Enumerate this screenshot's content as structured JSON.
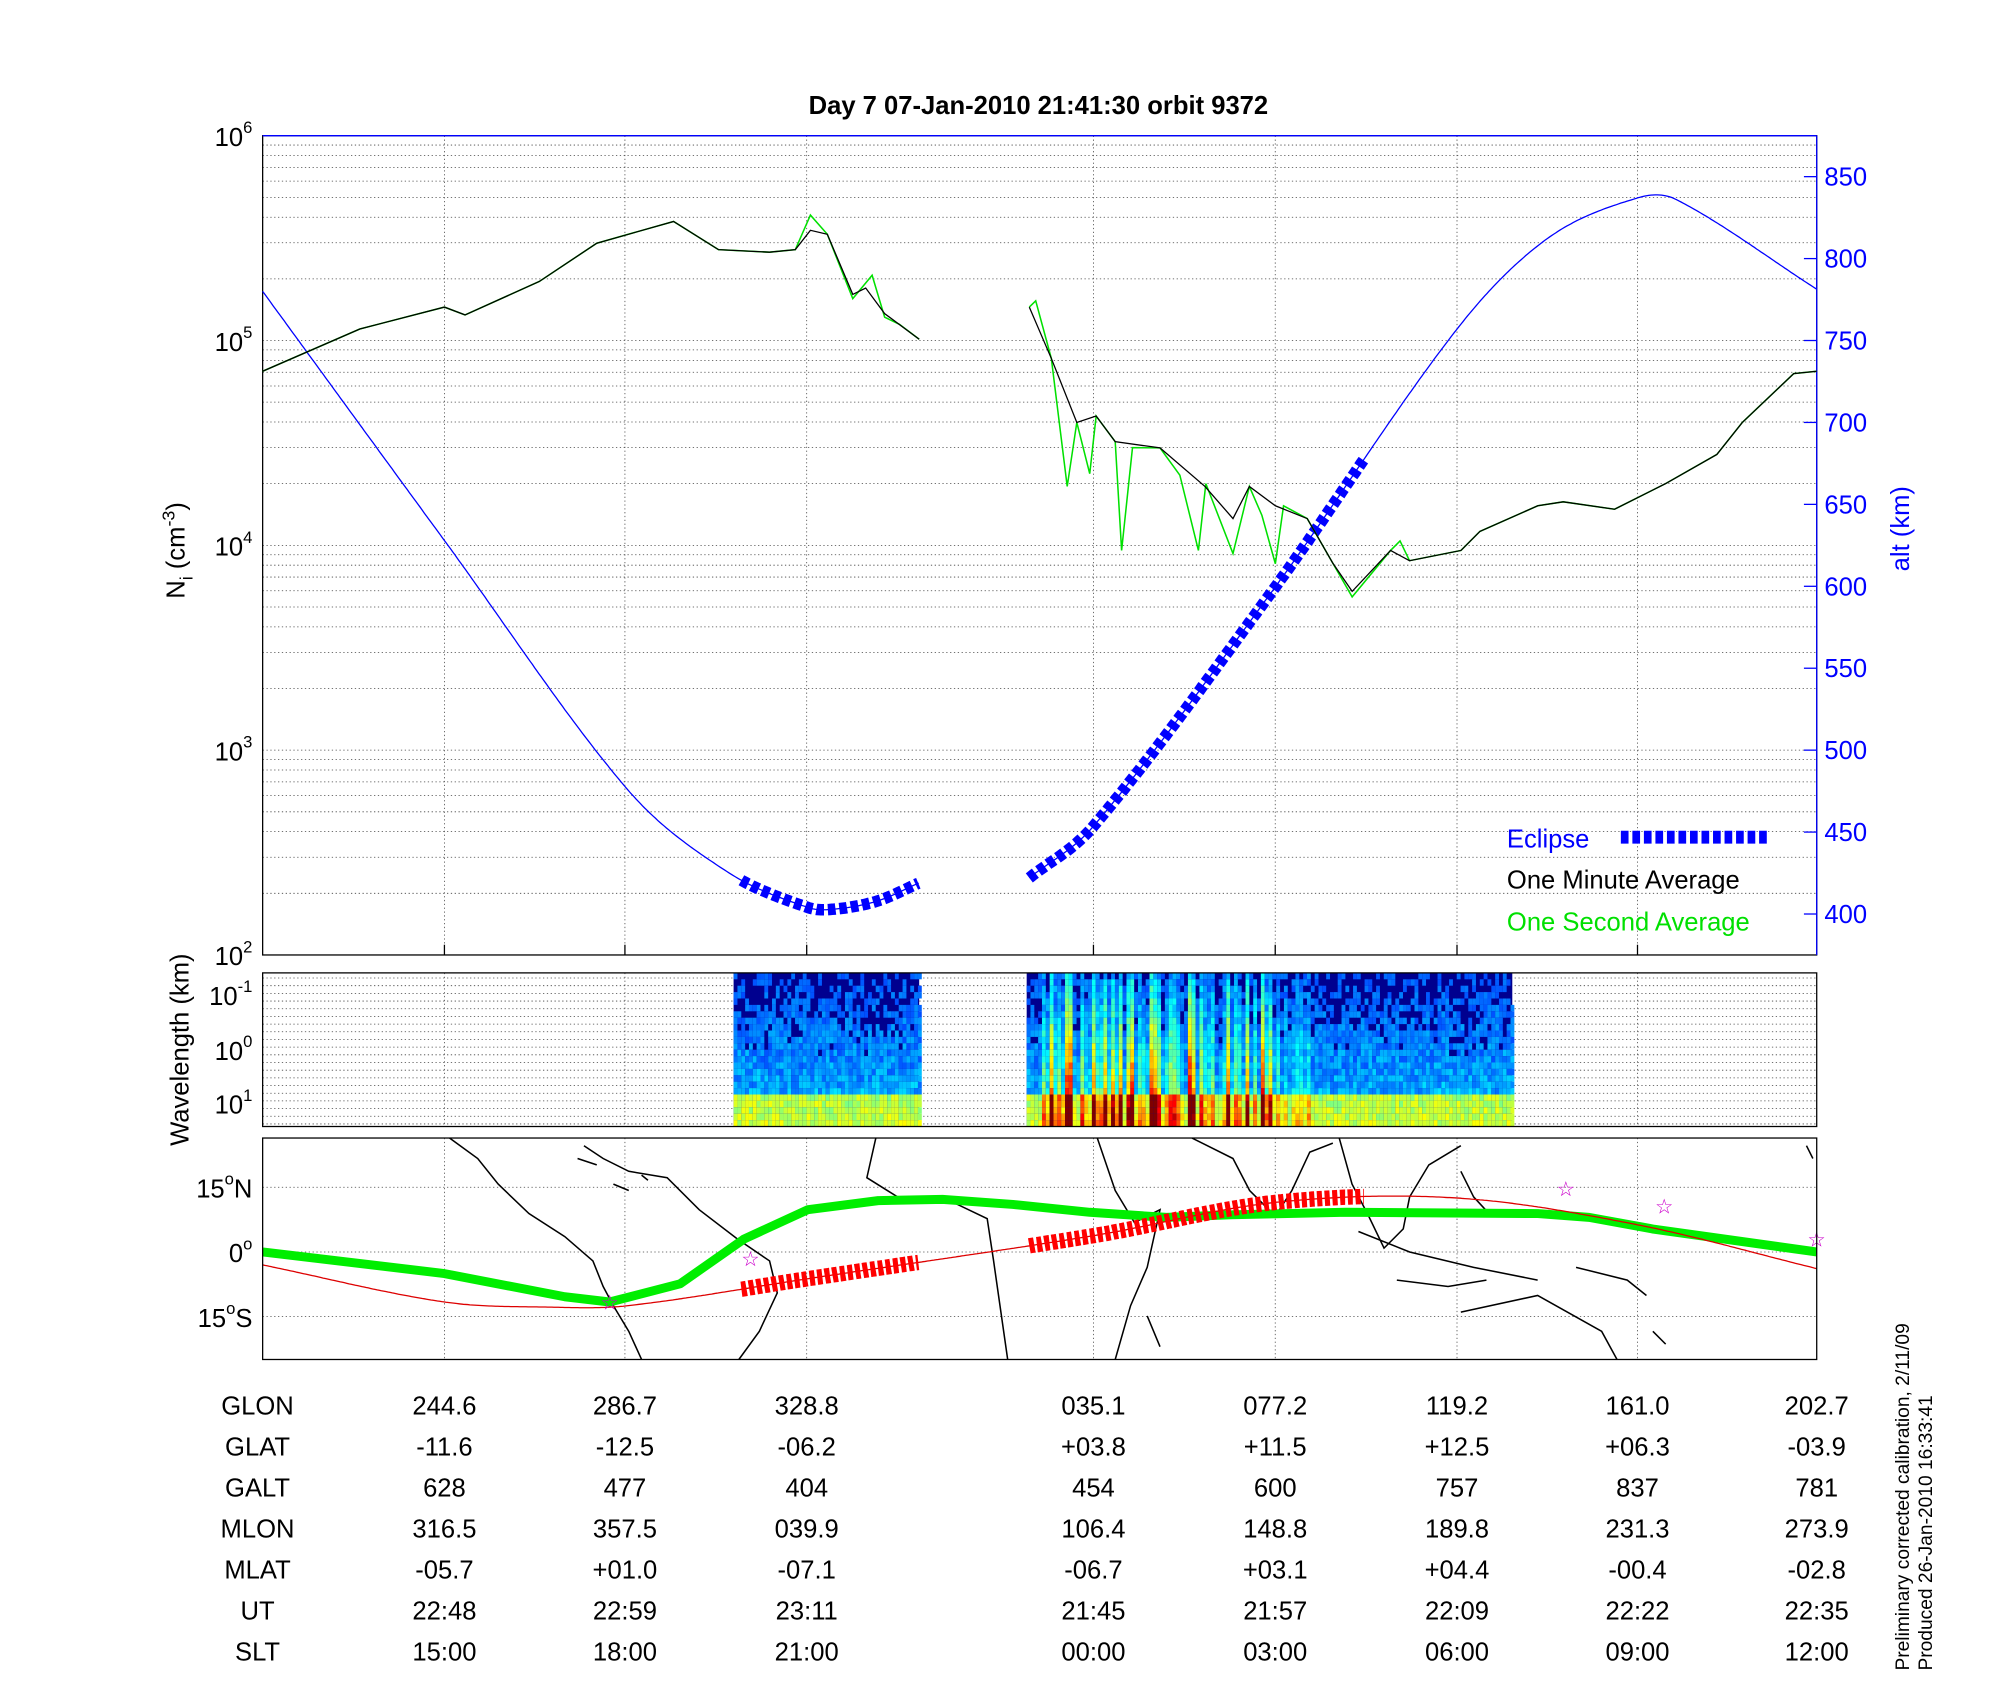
{
  "title": "Day 7  07-Jan-2010 21:41:30   orbit 9372",
  "footnote": [
    "Preliminary corrected calibration, 2/11/09",
    "Produced 26-Jan-2010 16:33:41"
  ],
  "colors": {
    "one_minute": "#000000",
    "one_second": "#00e000",
    "altitude": "#0000ff",
    "eclipse": "#0000ff",
    "track": "#dd0000",
    "track_eclipse": "#ff0000",
    "green_line": "#00ee00",
    "stars": "#cc00cc"
  },
  "chart_data": [
    {
      "type": "line",
      "ylabel": {
        "base": "N",
        "sub": "i",
        "unit_pre": " (cm",
        "unit_sup": "-3",
        "unit_post": ")"
      },
      "y2label": "alt (km)",
      "yscale": "log",
      "ylim": [
        100,
        1000000
      ],
      "y_ticks": [
        {
          "base": "10",
          "exp": "6"
        },
        {
          "base": "10",
          "exp": "5"
        },
        {
          "base": "10",
          "exp": "4"
        },
        {
          "base": "10",
          "exp": "3"
        },
        {
          "base": "10",
          "exp": "2"
        }
      ],
      "y2lim": [
        375,
        875
      ],
      "y2_ticks": [
        "850",
        "800",
        "750",
        "700",
        "650",
        "600",
        "550",
        "500",
        "450",
        "400"
      ],
      "xlim": [
        202.5,
        562.7
      ],
      "grid": true,
      "legend": {
        "position": "bottom-right",
        "entries": [
          "Eclipse",
          "One Minute Average",
          "One Second Average"
        ]
      },
      "series": [
        {
          "name": "One Minute Average",
          "segments": [
            [
              [
                202.5,
                70800
              ],
              [
                225.0,
                113800
              ],
              [
                244.6,
                145500
              ],
              [
                249.4,
                133400
              ],
              [
                266.6,
                194100
              ],
              [
                279.9,
                298500
              ],
              [
                297.7,
                381100
              ],
              [
                308.1,
                278000
              ],
              [
                319.9,
                269800
              ],
              [
                325.9,
                278000
              ],
              [
                329.4,
                345100
              ],
              [
                333.3,
                330400
              ],
              [
                339.2,
                167900
              ],
              [
                342.2,
                180300
              ],
              [
                346.6,
                135200
              ],
              [
                354.6,
                101400
              ]
            ],
            [
              [
                380.1,
                145500
              ],
              [
                385.2,
                81800
              ],
              [
                391.1,
                39800
              ],
              [
                395.6,
                42800
              ],
              [
                400.0,
                32100
              ],
              [
                410.4,
                29900
              ],
              [
                420.8,
                19400
              ],
              [
                427.3,
                13500
              ],
              [
                431.1,
                19400
              ],
              [
                437.1,
                15600
              ],
              [
                444.5,
                13500
              ],
              [
                450.4,
                8200
              ],
              [
                454.9,
                5960
              ],
              [
                463.8,
                9440
              ],
              [
                468.2,
                8410
              ],
              [
                480.1,
                9440
              ],
              [
                484.5,
                11700
              ],
              [
                497.9,
                15600
              ],
              [
                503.8,
                16300
              ],
              [
                515.7,
                15000
              ],
              [
                527.5,
                20000
              ],
              [
                539.4,
                27800
              ],
              [
                545.3,
                39800
              ],
              [
                557.2,
                68900
              ],
              [
                562.5,
                70800
              ]
            ]
          ]
        },
        {
          "name": "One Second Average",
          "segments": [
            [
              [
                202.5,
                70800
              ],
              [
                225.0,
                113800
              ],
              [
                244.6,
                145500
              ],
              [
                249.4,
                133400
              ],
              [
                266.6,
                194100
              ],
              [
                279.9,
                298500
              ],
              [
                297.7,
                381100
              ],
              [
                308.1,
                278000
              ],
              [
                319.9,
                269800
              ],
              [
                325.9,
                278000
              ],
              [
                329.4,
                410000
              ],
              [
                333.3,
                330400
              ],
              [
                339.2,
                160000
              ],
              [
                343.7,
                208400
              ],
              [
                346.6,
                130000
              ],
              [
                350.0,
                120000
              ],
              [
                354.6,
                101400
              ]
            ],
            [
              [
                380.1,
                145500
              ],
              [
                381.6,
                156300
              ],
              [
                385.2,
                81800
              ],
              [
                388.9,
                19400
              ],
              [
                391.1,
                39800
              ],
              [
                394.1,
                22400
              ],
              [
                395.6,
                42800
              ],
              [
                400.0,
                32100
              ],
              [
                401.5,
                9440
              ],
              [
                404.0,
                30000
              ],
              [
                410.4,
                29900
              ],
              [
                415.0,
                22000
              ],
              [
                419.3,
                9440
              ],
              [
                421.0,
                20000
              ],
              [
                427.3,
                9120
              ],
              [
                431.1,
                19400
              ],
              [
                434.0,
                14000
              ],
              [
                437.1,
                8130
              ],
              [
                439.0,
                15600
              ],
              [
                444.5,
                13500
              ],
              [
                450.4,
                8200
              ],
              [
                454.9,
                5600
              ],
              [
                463.8,
                9440
              ],
              [
                466.0,
                10500
              ],
              [
                468.2,
                8410
              ],
              [
                480.1,
                9440
              ],
              [
                484.5,
                11700
              ],
              [
                497.9,
                15600
              ],
              [
                503.8,
                16300
              ],
              [
                515.7,
                15000
              ],
              [
                527.5,
                20000
              ],
              [
                539.4,
                27800
              ],
              [
                545.3,
                39800
              ],
              [
                557.2,
                68900
              ],
              [
                562.5,
                70800
              ]
            ]
          ]
        },
        {
          "name": "alt (km)",
          "axis": "right",
          "segments": [
            [
              [
                202.5,
                780
              ],
              [
                244.6,
                628
              ],
              [
                286.7,
                477
              ],
              [
                310,
                426
              ],
              [
                328.8,
                404
              ],
              [
                335,
                403
              ],
              [
                345,
                408
              ],
              [
                354.6,
                419
              ]
            ],
            [
              [
                380.1,
                422
              ],
              [
                395.1,
                454
              ],
              [
                437.2,
                600
              ],
              [
                479.2,
                757
              ],
              [
                500,
                812
              ],
              [
                521,
                837
              ],
              [
                530,
                836
              ],
              [
                562.7,
                781
              ]
            ]
          ]
        },
        {
          "name": "Eclipse",
          "ranges": [
            [
              313.4,
              354.6
            ],
            [
              380.1,
              457.8
            ]
          ]
        }
      ]
    },
    {
      "type": "heatmap",
      "ylabel": "Wavelength (km)",
      "y_ticks": [
        {
          "base": "10",
          "exp": "-1"
        },
        {
          "base": "10",
          "exp": "0"
        },
        {
          "base": "10",
          "exp": "1"
        }
      ],
      "data_ranges": [
        [
          311.6,
          354.6
        ],
        [
          379.5,
          492.0
        ]
      ],
      "high_intensity_range": [
        383,
        445
      ]
    },
    {
      "type": "line",
      "y_ticks": [
        {
          "v": "15",
          "deg": "o",
          "h": "N"
        },
        {
          "v": "0",
          "deg": "o",
          "h": ""
        },
        {
          "v": "15",
          "deg": "o",
          "h": "S"
        }
      ],
      "ylim": [
        -26,
        26.5
      ],
      "track": [
        [
          202.5,
          -3.0
        ],
        [
          244.6,
          -11.6
        ],
        [
          269.5,
          -12.8
        ],
        [
          286.7,
          -12.5
        ],
        [
          328.8,
          -6.2
        ],
        [
          395.1,
          3.8
        ],
        [
          437.2,
          11.5
        ],
        [
          479.2,
          12.5
        ],
        [
          521.0,
          6.3
        ],
        [
          562.7,
          -3.9
        ]
      ],
      "eclipse_ranges": [
        [
          313.4,
          354.6
        ],
        [
          380.1,
          457.8
        ]
      ],
      "green_line": [
        [
          202.5,
          0
        ],
        [
          244.6,
          -5.0
        ],
        [
          272.5,
          -10.4
        ],
        [
          282.9,
          -11.6
        ],
        [
          299.2,
          -7.4
        ],
        [
          314.0,
          3.0
        ],
        [
          328.8,
          9.8
        ],
        [
          345.1,
          11.9
        ],
        [
          360,
          12.2
        ],
        [
          376.3,
          11.0
        ],
        [
          394.1,
          9.2
        ],
        [
          411.9,
          8.0
        ],
        [
          426.7,
          8.6
        ],
        [
          453.4,
          9.2
        ],
        [
          497.9,
          8.9
        ],
        [
          509.8,
          8.0
        ],
        [
          524.6,
          5.3
        ],
        [
          562.5,
          0
        ]
      ],
      "stars": [
        [
          282.9,
          -11.6
        ],
        [
          315.5,
          -1.5
        ],
        [
          504.4,
          14.8
        ],
        [
          527.2,
          10.7
        ],
        [
          562.5,
          3.0
        ]
      ]
    }
  ],
  "table": {
    "rows": [
      {
        "label": "GLON",
        "values": [
          "244.6",
          "286.7",
          "328.8",
          "035.1",
          "077.2",
          "119.2",
          "161.0",
          "202.7"
        ]
      },
      {
        "label": "GLAT",
        "values": [
          "-11.6",
          "-12.5",
          "-06.2",
          "+03.8",
          "+11.5",
          "+12.5",
          "+06.3",
          "-03.9"
        ]
      },
      {
        "label": "GALT",
        "values": [
          "628",
          "477",
          "404",
          "454",
          "600",
          "757",
          "837",
          "781"
        ]
      },
      {
        "label": "MLON",
        "values": [
          "316.5",
          "357.5",
          "039.9",
          "106.4",
          "148.8",
          "189.8",
          "231.3",
          "273.9"
        ]
      },
      {
        "label": "MLAT",
        "values": [
          "-05.7",
          "+01.0",
          "-07.1",
          "-06.7",
          "+03.1",
          "+04.4",
          "-00.4",
          "-02.8"
        ]
      },
      {
        "label": "UT",
        "values": [
          "22:48",
          "22:59",
          "23:11",
          "21:45",
          "21:57",
          "22:09",
          "22:22",
          "22:35"
        ]
      },
      {
        "label": "SLT",
        "values": [
          "15:00",
          "18:00",
          "21:00",
          "00:00",
          "03:00",
          "06:00",
          "09:00",
          "12:00"
        ]
      }
    ]
  }
}
